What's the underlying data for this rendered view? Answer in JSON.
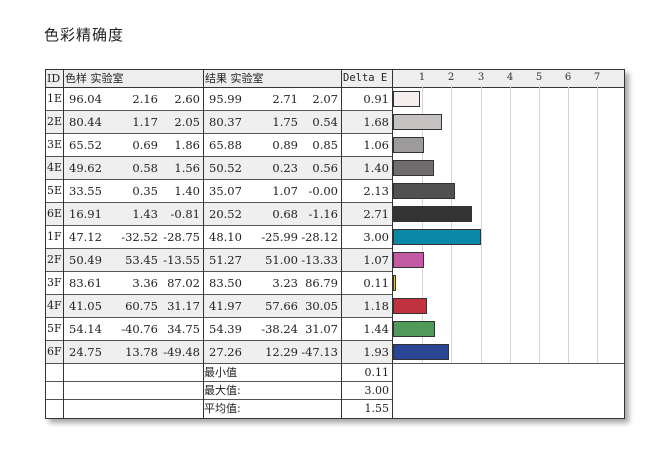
{
  "title": "色彩精确度",
  "table": {
    "headers": {
      "id": "ID",
      "sample": "色样 实验室",
      "result": "结果 实验室",
      "delta_e": "Delta E"
    },
    "rows": [
      {
        "id": "1E",
        "s_l": "96.04",
        "s_a": "2.16",
        "s_b": "2.60",
        "r_l": "95.99",
        "r_a": "2.71",
        "r_b": "2.07",
        "de": "0.91"
      },
      {
        "id": "2E",
        "s_l": "80.44",
        "s_a": "1.17",
        "s_b": "2.05",
        "r_l": "80.37",
        "r_a": "1.75",
        "r_b": "0.54",
        "de": "1.68"
      },
      {
        "id": "3E",
        "s_l": "65.52",
        "s_a": "0.69",
        "s_b": "1.86",
        "r_l": "65.88",
        "r_a": "0.89",
        "r_b": "0.85",
        "de": "1.06"
      },
      {
        "id": "4E",
        "s_l": "49.62",
        "s_a": "0.58",
        "s_b": "1.56",
        "r_l": "50.52",
        "r_a": "0.23",
        "r_b": "0.56",
        "de": "1.40"
      },
      {
        "id": "5E",
        "s_l": "33.55",
        "s_a": "0.35",
        "s_b": "1.40",
        "r_l": "35.07",
        "r_a": "1.07",
        "r_b": "-0.00",
        "de": "2.13"
      },
      {
        "id": "6E",
        "s_l": "16.91",
        "s_a": "1.43",
        "s_b": "-0.81",
        "r_l": "20.52",
        "r_a": "0.68",
        "r_b": "-1.16",
        "de": "2.71"
      },
      {
        "id": "1F",
        "s_l": "47.12",
        "s_a": "-32.52",
        "s_b": "-28.75",
        "r_l": "48.10",
        "r_a": "-25.99",
        "r_b": "-28.12",
        "de": "3.00"
      },
      {
        "id": "2F",
        "s_l": "50.49",
        "s_a": "53.45",
        "s_b": "-13.55",
        "r_l": "51.27",
        "r_a": "51.00",
        "r_b": "-13.33",
        "de": "1.07"
      },
      {
        "id": "3F",
        "s_l": "83.61",
        "s_a": "3.36",
        "s_b": "87.02",
        "r_l": "83.50",
        "r_a": "3.23",
        "r_b": "86.79",
        "de": "0.11"
      },
      {
        "id": "4F",
        "s_l": "41.05",
        "s_a": "60.75",
        "s_b": "31.17",
        "r_l": "41.97",
        "r_a": "57.66",
        "r_b": "30.05",
        "de": "1.18"
      },
      {
        "id": "5F",
        "s_l": "54.14",
        "s_a": "-40.76",
        "s_b": "34.75",
        "r_l": "54.39",
        "r_a": "-38.24",
        "r_b": "31.07",
        "de": "1.44"
      },
      {
        "id": "6F",
        "s_l": "24.75",
        "s_a": "13.78",
        "s_b": "-49.48",
        "r_l": "27.26",
        "r_a": "12.29",
        "r_b": "-47.13",
        "de": "1.93"
      }
    ],
    "summary": [
      {
        "label": "最小值",
        "value": "0.11"
      },
      {
        "label": "最大值:",
        "value": "3.00"
      },
      {
        "label": "平均值:",
        "value": "1.55"
      }
    ]
  },
  "chart_data": {
    "type": "bar",
    "orientation": "horizontal",
    "title": "色彩精确度",
    "xlabel": "Delta E",
    "ylabel": "ID",
    "xlim": [
      0,
      8
    ],
    "x_ticks": [
      "1",
      "2",
      "3",
      "4",
      "5",
      "6",
      "7"
    ],
    "grid": true,
    "categories": [
      "1E",
      "2E",
      "3E",
      "4E",
      "5E",
      "6E",
      "1F",
      "2F",
      "3F",
      "4F",
      "5F",
      "6F"
    ],
    "values": [
      0.91,
      1.68,
      1.06,
      1.4,
      2.13,
      2.71,
      3.0,
      1.07,
      0.11,
      1.18,
      1.44,
      1.93
    ],
    "bar_colors": [
      "#f6eeee",
      "#c6c2c2",
      "#9c9a9a",
      "#6f6d6d",
      "#525151",
      "#333333",
      "#0b87a8",
      "#c45aa4",
      "#e8c85a",
      "#c0323e",
      "#4f9a58",
      "#2a4593"
    ],
    "summary": {
      "min": 0.11,
      "max": 3.0,
      "mean": 1.55
    }
  }
}
